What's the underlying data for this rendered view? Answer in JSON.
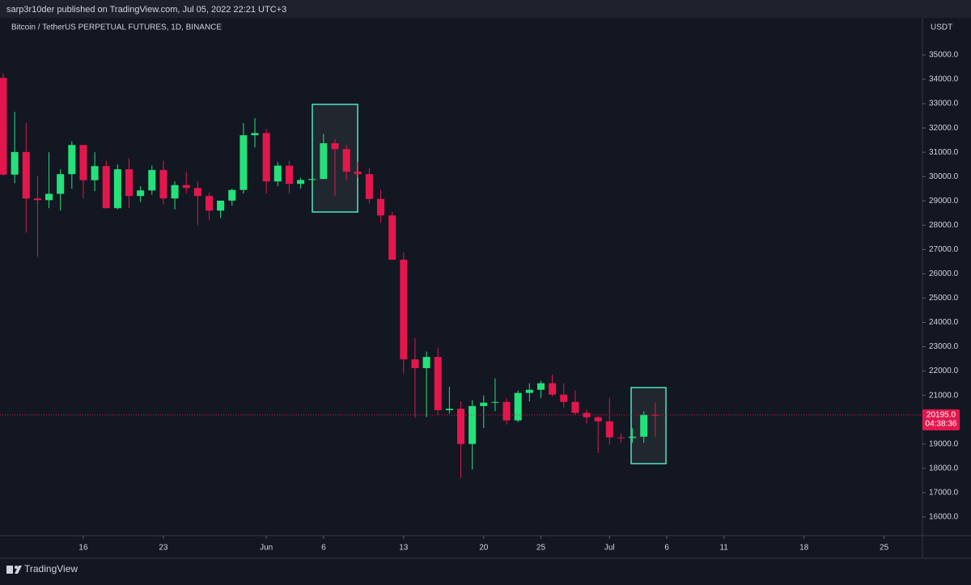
{
  "header": {
    "publisher": "sarp3r10der published on TradingView.com, Jul 05, 2022 22:21 UTC+3"
  },
  "chart_data": {
    "type": "candlestick",
    "title": "Bitcoin / TetherUS PERPETUAL FUTURES, 1D, BINANCE",
    "y_unit": "USDT",
    "x": [
      "2022-05-09",
      "2022-05-10",
      "2022-05-11",
      "2022-05-12",
      "2022-05-13",
      "2022-05-14",
      "2022-05-15",
      "2022-05-16",
      "2022-05-17",
      "2022-05-18",
      "2022-05-19",
      "2022-05-20",
      "2022-05-21",
      "2022-05-22",
      "2022-05-23",
      "2022-05-24",
      "2022-05-25",
      "2022-05-26",
      "2022-05-27",
      "2022-05-28",
      "2022-05-29",
      "2022-05-30",
      "2022-05-31",
      "2022-06-01",
      "2022-06-02",
      "2022-06-03",
      "2022-06-04",
      "2022-06-05",
      "2022-06-06",
      "2022-06-07",
      "2022-06-08",
      "2022-06-09",
      "2022-06-10",
      "2022-06-11",
      "2022-06-12",
      "2022-06-13",
      "2022-06-14",
      "2022-06-15",
      "2022-06-16",
      "2022-06-17",
      "2022-06-18",
      "2022-06-19",
      "2022-06-20",
      "2022-06-21",
      "2022-06-22",
      "2022-06-23",
      "2022-06-24",
      "2022-06-25",
      "2022-06-26",
      "2022-06-27",
      "2022-06-28",
      "2022-06-29",
      "2022-06-30",
      "2022-07-01",
      "2022-07-02",
      "2022-07-03",
      "2022-07-04",
      "2022-07-05"
    ],
    "open": [
      34060,
      30080,
      31010,
      29100,
      29030,
      29290,
      30100,
      31300,
      29850,
      30430,
      28700,
      30300,
      29200,
      29430,
      30270,
      29100,
      29650,
      29530,
      29200,
      28600,
      29010,
      29450,
      31700,
      31790,
      29800,
      30450,
      29700,
      29860,
      29900,
      31370,
      31130,
      30200,
      30100,
      29080,
      28400,
      26580,
      22480,
      22120,
      22580,
      20390,
      20450,
      19000,
      20560,
      20700,
      20730,
      19970,
      21100,
      21230,
      21500,
      21030,
      20730,
      20280,
      20100,
      19930,
      19270,
      19250,
      19300,
      20200
    ],
    "high": [
      34240,
      32660,
      32200,
      30040,
      31000,
      30300,
      31450,
      31300,
      31000,
      30650,
      30500,
      30750,
      29600,
      30450,
      30650,
      29800,
      30200,
      29800,
      29350,
      29000,
      29500,
      32200,
      32400,
      31960,
      30600,
      30650,
      29950,
      30150,
      31750,
      31550,
      31300,
      30600,
      30350,
      29450,
      28550,
      26880,
      23350,
      22800,
      22950,
      21350,
      20750,
      20800,
      21000,
      21700,
      20880,
      21200,
      21500,
      21600,
      21850,
      21500,
      21200,
      20400,
      20150,
      20900,
      19450,
      19650,
      20350,
      20700
    ],
    "low": [
      30030,
      29730,
      27700,
      26700,
      28700,
      28600,
      29500,
      29100,
      29400,
      28700,
      28650,
      28700,
      28950,
      29250,
      28850,
      28650,
      29300,
      28000,
      28200,
      28300,
      28800,
      29300,
      31200,
      29300,
      29600,
      29300,
      29500,
      29500,
      29900,
      29200,
      29850,
      29950,
      28900,
      28100,
      26560,
      21900,
      20080,
      20100,
      20200,
      20250,
      17600,
      17950,
      19650,
      20350,
      19800,
      19900,
      20750,
      20900,
      20950,
      20500,
      20200,
      19850,
      18630,
      18970,
      19050,
      19050,
      19050,
      19300
    ],
    "close": [
      30080,
      31010,
      29100,
      29030,
      29290,
      30100,
      31300,
      29850,
      30430,
      28700,
      30300,
      29200,
      29430,
      30270,
      29100,
      29650,
      29530,
      29200,
      28600,
      29010,
      29450,
      31700,
      31790,
      29800,
      30450,
      29700,
      29860,
      29900,
      31370,
      31130,
      30200,
      30100,
      29080,
      28400,
      26580,
      22480,
      22120,
      22580,
      20390,
      20450,
      19000,
      20560,
      20700,
      20730,
      19970,
      21100,
      21230,
      21500,
      21030,
      20730,
      20280,
      20100,
      19930,
      19270,
      19250,
      19300,
      20200,
      20195
    ],
    "up_color": "#26e07a",
    "down_color": "#e3174d",
    "xlim": [
      "2022-05-09",
      "2022-07-28"
    ],
    "xticks": [
      {
        "value": "2022-05-16",
        "label": "16"
      },
      {
        "value": "2022-05-23",
        "label": "23"
      },
      {
        "value": "2022-06-01",
        "label": "Jun"
      },
      {
        "value": "2022-06-06",
        "label": "6"
      },
      {
        "value": "2022-06-13",
        "label": "13"
      },
      {
        "value": "2022-06-20",
        "label": "20"
      },
      {
        "value": "2022-06-25",
        "label": "25"
      },
      {
        "value": "2022-07-01",
        "label": "Jul"
      },
      {
        "value": "2022-07-06",
        "label": "6"
      },
      {
        "value": "2022-07-11",
        "label": "11"
      },
      {
        "value": "2022-07-18",
        "label": "18"
      },
      {
        "value": "2022-07-25",
        "label": "25"
      }
    ],
    "ylim": [
      15230,
      36530
    ],
    "yticks": [
      {
        "value": 16000,
        "label": "16000.0"
      },
      {
        "value": 17000,
        "label": "17000.0"
      },
      {
        "value": 18000,
        "label": "18000.0"
      },
      {
        "value": 19000,
        "label": "19000.0"
      },
      {
        "value": 20000,
        "label": "20000.0"
      },
      {
        "value": 21000,
        "label": "21000.0"
      },
      {
        "value": 22000,
        "label": "22000.0"
      },
      {
        "value": 23000,
        "label": "23000.0"
      },
      {
        "value": 24000,
        "label": "24000.0"
      },
      {
        "value": 25000,
        "label": "25000.0"
      },
      {
        "value": 26000,
        "label": "26000.0"
      },
      {
        "value": 27000,
        "label": "27000.0"
      },
      {
        "value": 28000,
        "label": "28000.0"
      },
      {
        "value": 29000,
        "label": "29000.0"
      },
      {
        "value": 30000,
        "label": "30000.0"
      },
      {
        "value": 31000,
        "label": "31000.0"
      },
      {
        "value": 32000,
        "label": "32000.0"
      },
      {
        "value": 33000,
        "label": "33000.0"
      },
      {
        "value": 34000,
        "label": "34000.0"
      },
      {
        "value": 35000,
        "label": "35000.0"
      }
    ],
    "last_price": {
      "value": 20195,
      "label": "20195.0"
    },
    "countdown": "04:38:36"
  },
  "footer": {
    "brand": "TradingView"
  }
}
